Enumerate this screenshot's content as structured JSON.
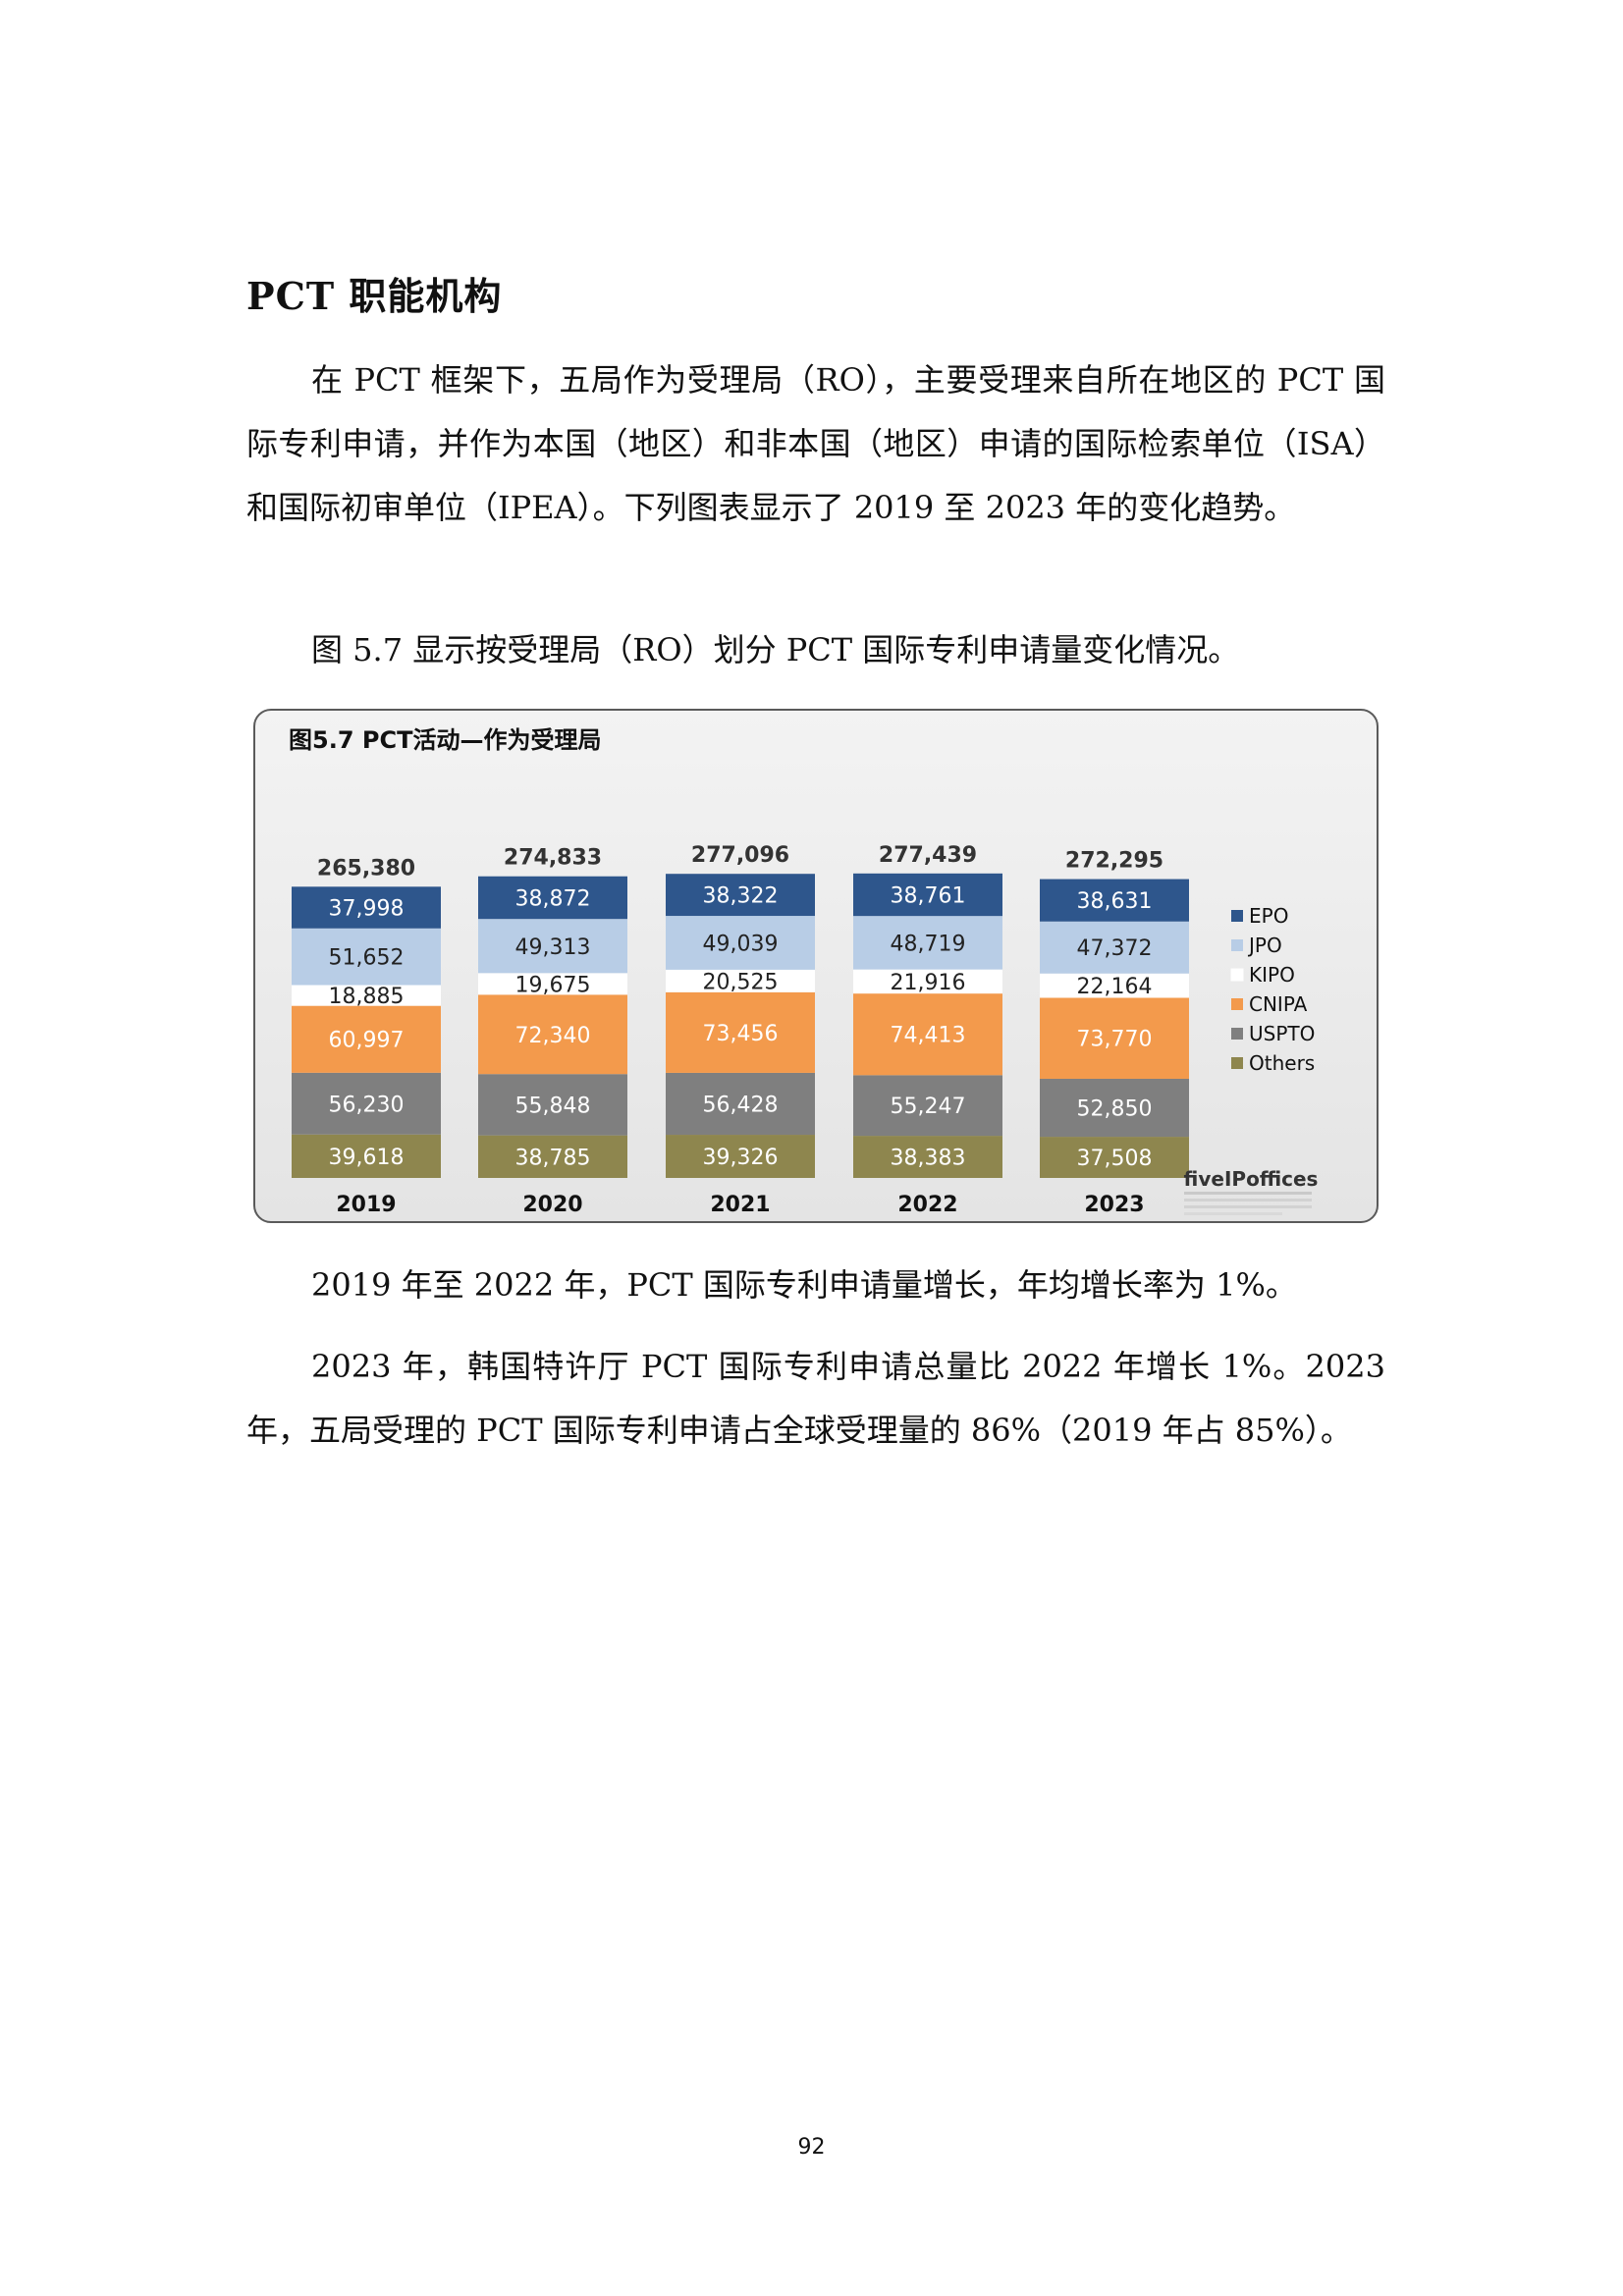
{
  "heading": "PCT 职能机构",
  "paragraphs": {
    "intro": "在 PCT 框架下，五局作为受理局（RO），主要受理来自所在地区的 PCT 国际专利申请，并作为本国（地区）和非本国（地区）申请的国际检索单位（ISA）和国际初审单位（IPEA）。下列图表显示了 2019 至 2023 年的变化趋势。",
    "figure_intro": "图 5.7 显示按受理局（RO）划分 PCT 国际专利申请量变化情况。",
    "growth": "2019 年至 2022 年，PCT 国际专利申请量增长，年均增长率为 1%。",
    "kipo_note": "2023 年，韩国特许厅 PCT 国际专利申请总量比 2022 年增长 1%。2023 年，五局受理的 PCT 国际专利申请占全球受理量的 86%（2019 年占 85%）。"
  },
  "page_number": "92",
  "chart_data": {
    "type": "bar",
    "stacked": true,
    "title": "图5.7 PCT活动—作为受理局",
    "categories": [
      "2019",
      "2020",
      "2021",
      "2022",
      "2023"
    ],
    "totals": [
      "265,380",
      "274,833",
      "277,096",
      "277,439",
      "272,295"
    ],
    "series": [
      {
        "name": "EPO",
        "color": "#2e568c",
        "label_color": "#ffffff",
        "values": [
          37998,
          38872,
          38322,
          38761,
          38631
        ],
        "labels": [
          "37,998",
          "38,872",
          "38,322",
          "38,761",
          "38,631"
        ]
      },
      {
        "name": "JPO",
        "color": "#b8cde6",
        "label_color": "#222222",
        "values": [
          51652,
          49313,
          49039,
          48719,
          47372
        ],
        "labels": [
          "51,652",
          "49,313",
          "49,039",
          "48,719",
          "47,372"
        ]
      },
      {
        "name": "KIPO",
        "color": "#ffffff",
        "label_color": "#222222",
        "values": [
          18885,
          19675,
          20525,
          21916,
          22164
        ],
        "labels": [
          "18,885",
          "19,675",
          "20,525",
          "21,916",
          "22,164"
        ]
      },
      {
        "name": "CNIPA",
        "color": "#f39a4c",
        "label_color": "#ffffff",
        "values": [
          60997,
          72340,
          73456,
          74413,
          73770
        ],
        "labels": [
          "60,997",
          "72,340",
          "73,456",
          "74,413",
          "73,770"
        ]
      },
      {
        "name": "USPTO",
        "color": "#7f7f7f",
        "label_color": "#ffffff",
        "values": [
          56230,
          55848,
          56428,
          55247,
          52850
        ],
        "labels": [
          "56,230",
          "55,848",
          "56,428",
          "55,247",
          "52,850"
        ]
      },
      {
        "name": "Others",
        "color": "#8e864e",
        "label_color": "#ffffff",
        "values": [
          39618,
          38785,
          39326,
          38383,
          37508
        ],
        "labels": [
          "39,618",
          "38,785",
          "39,326",
          "38,383",
          "37,508"
        ]
      }
    ],
    "legend_position": "right",
    "grid": false,
    "logo_text": "fiveIPoffices"
  }
}
